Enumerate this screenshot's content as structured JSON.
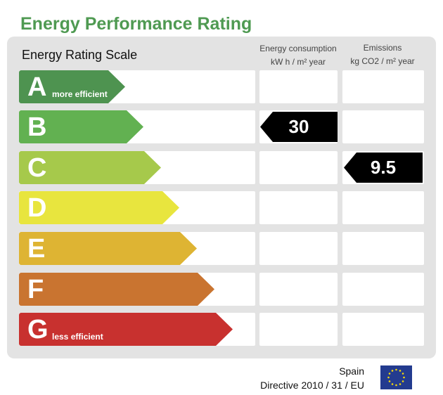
{
  "title": "Energy Performance Rating",
  "scale_heading": "Energy Rating Scale",
  "columns": {
    "energy": {
      "line1": "Energy consumption",
      "line2": "kW h / m² year"
    },
    "emissions": {
      "line1": "Emissions",
      "line2": "kg CO2 / m² year"
    }
  },
  "ratings": [
    {
      "letter": "A",
      "sub": "more efficient",
      "color": "#4e9350"
    },
    {
      "letter": "B",
      "sub": "",
      "color": "#62b151"
    },
    {
      "letter": "C",
      "sub": "",
      "color": "#a6c94b"
    },
    {
      "letter": "D",
      "sub": "",
      "color": "#e8e53e"
    },
    {
      "letter": "E",
      "sub": "",
      "color": "#deb433"
    },
    {
      "letter": "F",
      "sub": "",
      "color": "#c97430"
    },
    {
      "letter": "G",
      "sub": "less efficient",
      "color": "#c8312f"
    }
  ],
  "energy_value": {
    "value": "30",
    "rating": "B"
  },
  "emissions_value": {
    "value": "9.5",
    "rating": "C"
  },
  "footer": {
    "country": "Spain",
    "directive": "Directive 2010 / 31 / EU"
  }
}
